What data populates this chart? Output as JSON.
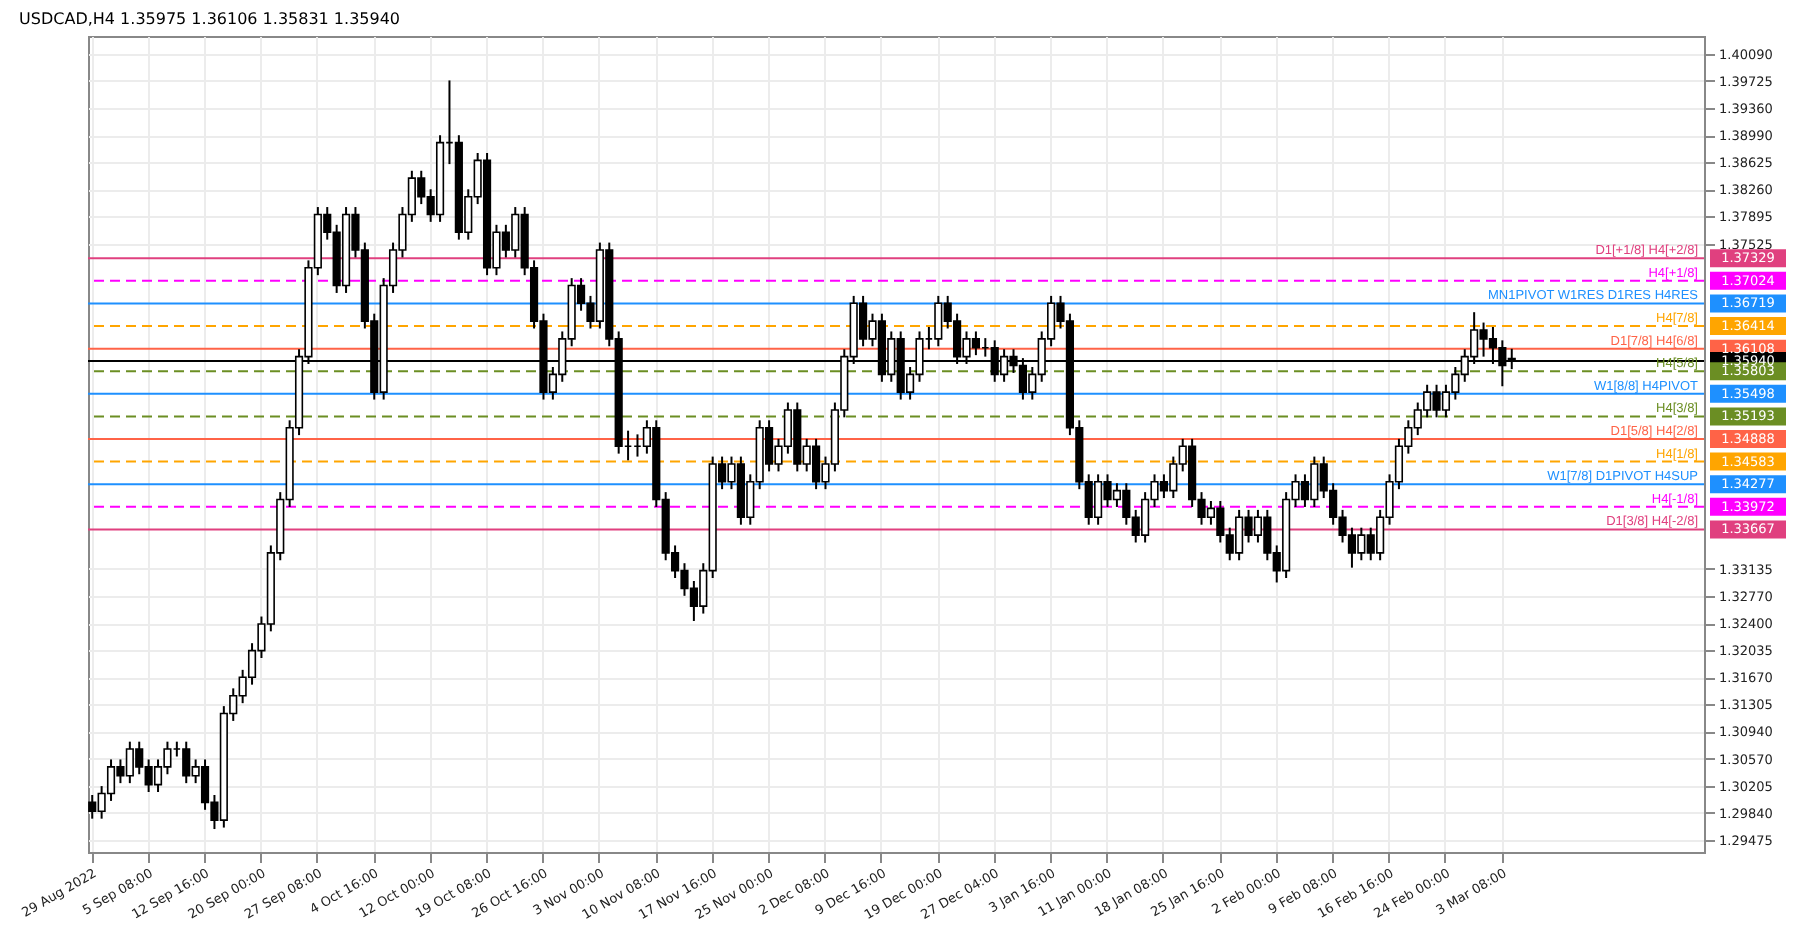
{
  "chart_data": {
    "type": "candlestick",
    "title": "USDCAD,H4 1.35975 1.36106 1.35831 1.35940",
    "categories": [
      "29 Aug 2022",
      null,
      null,
      null,
      null,
      null,
      "5 Sep 08:00",
      null,
      null,
      null,
      null,
      null,
      "12 Sep 16:00",
      null,
      null,
      null,
      null,
      null,
      "20 Sep 00:00",
      null,
      null,
      null,
      null,
      null,
      "27 Sep 08:00",
      null,
      null,
      null,
      null,
      null,
      "4 Oct 16:00",
      null,
      null,
      null,
      null,
      null,
      "12 Oct 00:00",
      null,
      null,
      null,
      null,
      null,
      "19 Oct 08:00",
      null,
      null,
      null,
      null,
      null,
      "26 Oct 16:00",
      null,
      null,
      null,
      null,
      null,
      "3 Nov 00:00",
      null,
      null,
      null,
      null,
      null,
      "10 Nov 08:00",
      null,
      null,
      null,
      null,
      null,
      "17 Nov 16:00",
      null,
      null,
      null,
      null,
      null,
      "25 Nov 00:00",
      null,
      null,
      null,
      null,
      null,
      "2 Dec 08:00",
      null,
      null,
      null,
      null,
      null,
      "9 Dec 16:00",
      null,
      null,
      null,
      null,
      null,
      "19 Dec 00:00",
      null,
      null,
      null,
      null,
      null,
      "27 Dec 04:00",
      null,
      null,
      null,
      null,
      null,
      "3 Jan 16:00",
      null,
      null,
      null,
      null,
      null,
      "11 Jan 00:00",
      null,
      null,
      null,
      null,
      null,
      "18 Jan 08:00",
      null,
      null,
      null,
      null,
      null,
      "25 Jan 16:00",
      null,
      null,
      null,
      null,
      null,
      "2 Feb 00:00",
      null,
      null,
      null,
      null,
      null,
      "9 Feb 08:00",
      null,
      null,
      null,
      null,
      null,
      "16 Feb 16:00",
      null,
      null,
      null,
      null,
      null,
      "24 Feb 00:00",
      null,
      null,
      null,
      null,
      null,
      "3 Mar 08:00",
      null,
      null,
      null,
      null,
      null,
      null,
      null,
      null,
      null,
      null,
      null,
      null,
      null,
      null,
      null,
      null,
      null,
      null,
      null,
      null,
      null
    ],
    "ohlc": [
      [
        1.2998,
        1.3008,
        1.2976,
        1.2986
      ],
      [
        1.2986,
        1.302,
        1.2976,
        1.301
      ],
      [
        1.301,
        1.3056,
        1.3,
        1.3046
      ],
      [
        1.3046,
        1.3056,
        1.3024,
        1.3034
      ],
      [
        1.3034,
        1.308,
        1.3024,
        1.307
      ],
      [
        1.307,
        1.308,
        1.3036,
        1.3046
      ],
      [
        1.3046,
        1.3056,
        1.3012,
        1.3022
      ],
      [
        1.3022,
        1.3056,
        1.3012,
        1.3046
      ],
      [
        1.3046,
        1.308,
        1.3036,
        1.307
      ],
      [
        1.307,
        1.308,
        1.306,
        1.307
      ],
      [
        1.307,
        1.308,
        1.3024,
        1.3034
      ],
      [
        1.3034,
        1.3056,
        1.3024,
        1.3046
      ],
      [
        1.3046,
        1.3056,
        1.2988,
        1.2998
      ],
      [
        1.2998,
        1.3008,
        1.2962,
        1.2974
      ],
      [
        1.2974,
        1.3128,
        1.2964,
        1.3118
      ],
      [
        1.3118,
        1.3152,
        1.3108,
        1.3142
      ],
      [
        1.3142,
        1.3177,
        1.3132,
        1.3167
      ],
      [
        1.3167,
        1.3213,
        1.3157,
        1.3203
      ],
      [
        1.3203,
        1.3249,
        1.3193,
        1.3239
      ],
      [
        1.3239,
        1.3345,
        1.3229,
        1.3335
      ],
      [
        1.3335,
        1.3417,
        1.3325,
        1.3407
      ],
      [
        1.3407,
        1.3514,
        1.3397,
        1.3504
      ],
      [
        1.3504,
        1.361,
        1.3494,
        1.36
      ],
      [
        1.36,
        1.373,
        1.359,
        1.372
      ],
      [
        1.372,
        1.3802,
        1.371,
        1.3792
      ],
      [
        1.3792,
        1.3802,
        1.3758,
        1.3768
      ],
      [
        1.3768,
        1.3778,
        1.3686,
        1.3696
      ],
      [
        1.3696,
        1.3802,
        1.3686,
        1.3792
      ],
      [
        1.3792,
        1.3802,
        1.3734,
        1.3744
      ],
      [
        1.3744,
        1.3754,
        1.3638,
        1.3648
      ],
      [
        1.3648,
        1.3658,
        1.3542,
        1.3552
      ],
      [
        1.3552,
        1.3706,
        1.3542,
        1.3696
      ],
      [
        1.3696,
        1.3754,
        1.3686,
        1.3744
      ],
      [
        1.3744,
        1.3802,
        1.3734,
        1.3792
      ],
      [
        1.3792,
        1.3851,
        1.3782,
        1.3841
      ],
      [
        1.3841,
        1.3851,
        1.3806,
        1.3816
      ],
      [
        1.3816,
        1.3826,
        1.3782,
        1.3792
      ],
      [
        1.3792,
        1.3899,
        1.3782,
        1.3889
      ],
      [
        1.3889,
        1.3973,
        1.386,
        1.3889
      ],
      [
        1.3889,
        1.3899,
        1.3758,
        1.3768
      ],
      [
        1.3768,
        1.3826,
        1.3758,
        1.3816
      ],
      [
        1.3816,
        1.3875,
        1.3806,
        1.3865
      ],
      [
        1.3865,
        1.3875,
        1.371,
        1.372
      ],
      [
        1.372,
        1.3778,
        1.371,
        1.3768
      ],
      [
        1.3768,
        1.3778,
        1.3734,
        1.3744
      ],
      [
        1.3744,
        1.3802,
        1.3734,
        1.3792
      ],
      [
        1.3792,
        1.3802,
        1.371,
        1.372
      ],
      [
        1.372,
        1.373,
        1.3638,
        1.3648
      ],
      [
        1.3648,
        1.3658,
        1.3542,
        1.3552
      ],
      [
        1.3552,
        1.3586,
        1.3542,
        1.3576
      ],
      [
        1.3576,
        1.3634,
        1.3566,
        1.3624
      ],
      [
        1.3624,
        1.3706,
        1.3614,
        1.3696
      ],
      [
        1.3696,
        1.3706,
        1.3662,
        1.3672
      ],
      [
        1.3672,
        1.3682,
        1.3638,
        1.3648
      ],
      [
        1.3648,
        1.3754,
        1.3638,
        1.3744
      ],
      [
        1.3744,
        1.3754,
        1.3614,
        1.3624
      ],
      [
        1.3624,
        1.3634,
        1.3469,
        1.3479
      ],
      [
        1.3479,
        1.35,
        1.346,
        1.3479
      ],
      [
        1.3479,
        1.3495,
        1.3465,
        1.3479
      ],
      [
        1.3479,
        1.3514,
        1.3469,
        1.3504
      ],
      [
        1.3504,
        1.3514,
        1.3397,
        1.3407
      ],
      [
        1.3407,
        1.3417,
        1.3325,
        1.3335
      ],
      [
        1.3335,
        1.3345,
        1.3301,
        1.3311
      ],
      [
        1.3311,
        1.3321,
        1.3277,
        1.3287
      ],
      [
        1.3287,
        1.3297,
        1.3243,
        1.3263
      ],
      [
        1.3263,
        1.3321,
        1.3253,
        1.3311
      ],
      [
        1.3311,
        1.3465,
        1.3301,
        1.3455
      ],
      [
        1.3455,
        1.3465,
        1.3421,
        1.3431
      ],
      [
        1.3431,
        1.3465,
        1.3421,
        1.3455
      ],
      [
        1.3455,
        1.3465,
        1.3373,
        1.3383
      ],
      [
        1.3383,
        1.3441,
        1.3373,
        1.3431
      ],
      [
        1.3431,
        1.3514,
        1.3421,
        1.3504
      ],
      [
        1.3504,
        1.3514,
        1.3445,
        1.3455
      ],
      [
        1.3455,
        1.3489,
        1.3445,
        1.3479
      ],
      [
        1.3479,
        1.3538,
        1.3469,
        1.3528
      ],
      [
        1.3528,
        1.3538,
        1.3445,
        1.3455
      ],
      [
        1.3455,
        1.3489,
        1.3445,
        1.3479
      ],
      [
        1.3479,
        1.3489,
        1.3421,
        1.3431
      ],
      [
        1.3431,
        1.3465,
        1.3421,
        1.3455
      ],
      [
        1.3455,
        1.3538,
        1.3445,
        1.3528
      ],
      [
        1.3528,
        1.361,
        1.3518,
        1.36
      ],
      [
        1.36,
        1.3682,
        1.359,
        1.3672
      ],
      [
        1.3672,
        1.3682,
        1.3614,
        1.3624
      ],
      [
        1.3624,
        1.3658,
        1.3614,
        1.3648
      ],
      [
        1.3648,
        1.3658,
        1.3566,
        1.3576
      ],
      [
        1.3576,
        1.3634,
        1.3566,
        1.3624
      ],
      [
        1.3624,
        1.3634,
        1.3542,
        1.3552
      ],
      [
        1.3552,
        1.3586,
        1.3542,
        1.3576
      ],
      [
        1.3576,
        1.3634,
        1.3566,
        1.3624
      ],
      [
        1.3624,
        1.364,
        1.361,
        1.3624
      ],
      [
        1.3624,
        1.3682,
        1.3614,
        1.3672
      ],
      [
        1.3672,
        1.3682,
        1.3638,
        1.3648
      ],
      [
        1.3648,
        1.3658,
        1.359,
        1.36
      ],
      [
        1.36,
        1.3634,
        1.359,
        1.3624
      ],
      [
        1.3624,
        1.3634,
        1.3602,
        1.3612
      ],
      [
        1.3612,
        1.3625,
        1.36,
        1.3612
      ],
      [
        1.3612,
        1.3622,
        1.3566,
        1.3576
      ],
      [
        1.3576,
        1.361,
        1.3566,
        1.36
      ],
      [
        1.36,
        1.361,
        1.3578,
        1.3588
      ],
      [
        1.3588,
        1.3598,
        1.3542,
        1.3552
      ],
      [
        1.3552,
        1.3586,
        1.3542,
        1.3576
      ],
      [
        1.3576,
        1.3634,
        1.3566,
        1.3624
      ],
      [
        1.3624,
        1.3682,
        1.3614,
        1.3672
      ],
      [
        1.3672,
        1.3682,
        1.3638,
        1.3648
      ],
      [
        1.3648,
        1.3658,
        1.3494,
        1.3504
      ],
      [
        1.3504,
        1.3514,
        1.3421,
        1.3431
      ],
      [
        1.3431,
        1.3441,
        1.3373,
        1.3383
      ],
      [
        1.3383,
        1.3441,
        1.3373,
        1.3431
      ],
      [
        1.3431,
        1.3441,
        1.3397,
        1.3407
      ],
      [
        1.3407,
        1.3429,
        1.3397,
        1.3419
      ],
      [
        1.3419,
        1.3429,
        1.3373,
        1.3383
      ],
      [
        1.3383,
        1.3393,
        1.3349,
        1.3359
      ],
      [
        1.3359,
        1.3417,
        1.3349,
        1.3407
      ],
      [
        1.3407,
        1.3441,
        1.3397,
        1.3431
      ],
      [
        1.3431,
        1.3441,
        1.3409,
        1.3419
      ],
      [
        1.3419,
        1.3465,
        1.3409,
        1.3455
      ],
      [
        1.3455,
        1.3489,
        1.3445,
        1.3479
      ],
      [
        1.3479,
        1.3489,
        1.3397,
        1.3407
      ],
      [
        1.3407,
        1.3417,
        1.3373,
        1.3383
      ],
      [
        1.3383,
        1.3405,
        1.3373,
        1.3395
      ],
      [
        1.3395,
        1.3405,
        1.3349,
        1.3359
      ],
      [
        1.3359,
        1.3369,
        1.3325,
        1.3335
      ],
      [
        1.3335,
        1.3393,
        1.3325,
        1.3383
      ],
      [
        1.3383,
        1.3393,
        1.3349,
        1.3359
      ],
      [
        1.3359,
        1.3393,
        1.3349,
        1.3383
      ],
      [
        1.3383,
        1.3393,
        1.3325,
        1.3335
      ],
      [
        1.3335,
        1.3345,
        1.3295,
        1.3311
      ],
      [
        1.3311,
        1.3417,
        1.3301,
        1.3407
      ],
      [
        1.3407,
        1.3441,
        1.3397,
        1.3431
      ],
      [
        1.3431,
        1.3441,
        1.3397,
        1.3407
      ],
      [
        1.3407,
        1.3465,
        1.3397,
        1.3455
      ],
      [
        1.3455,
        1.3465,
        1.3409,
        1.3419
      ],
      [
        1.3419,
        1.3429,
        1.3373,
        1.3383
      ],
      [
        1.3383,
        1.3393,
        1.3349,
        1.3359
      ],
      [
        1.3359,
        1.3369,
        1.3315,
        1.3335
      ],
      [
        1.3335,
        1.3369,
        1.3325,
        1.3359
      ],
      [
        1.3359,
        1.3369,
        1.3325,
        1.3335
      ],
      [
        1.3335,
        1.3393,
        1.3325,
        1.3383
      ],
      [
        1.3383,
        1.3441,
        1.3373,
        1.3431
      ],
      [
        1.3431,
        1.3489,
        1.3421,
        1.3479
      ],
      [
        1.3479,
        1.3514,
        1.3469,
        1.3504
      ],
      [
        1.3504,
        1.3538,
        1.3494,
        1.3528
      ],
      [
        1.3528,
        1.3562,
        1.3518,
        1.3552
      ],
      [
        1.3552,
        1.3562,
        1.3518,
        1.3528
      ],
      [
        1.3528,
        1.3562,
        1.3518,
        1.3552
      ],
      [
        1.3552,
        1.3586,
        1.3542,
        1.3576
      ],
      [
        1.3576,
        1.361,
        1.3566,
        1.36
      ],
      [
        1.36,
        1.366,
        1.359,
        1.3636
      ],
      [
        1.3636,
        1.3646,
        1.36,
        1.3624
      ],
      [
        1.3624,
        1.364,
        1.359,
        1.3612
      ],
      [
        1.3612,
        1.3622,
        1.356,
        1.3588
      ],
      [
        1.35975,
        1.36106,
        1.35831,
        1.3594
      ],
      null,
      null,
      null,
      null,
      null,
      null,
      null,
      null,
      null,
      null,
      null,
      null,
      null,
      null,
      null,
      null,
      null,
      null,
      null,
      null
    ],
    "ylim": [
      1.2931,
      1.4033
    ],
    "yticks": [
      {
        "value": 1.4009,
        "label": "1.40090"
      },
      1.39725,
      {
        "value": 1.3936,
        "label": "1.39360"
      },
      {
        "value": 1.3899,
        "label": "1.38990"
      },
      1.38625,
      {
        "value": 1.3826,
        "label": "1.38260"
      },
      1.37895,
      1.37525,
      1.33135,
      {
        "value": 1.3277,
        "label": "1.32770"
      },
      {
        "value": 1.324,
        "label": "1.32400"
      },
      1.32035,
      {
        "value": 1.3167,
        "label": "1.31670"
      },
      1.31305,
      {
        "value": 1.3094,
        "label": "1.30940"
      },
      {
        "value": 1.3057,
        "label": "1.30570"
      },
      1.30205,
      {
        "value": 1.2984,
        "label": "1.29840"
      },
      1.29475
    ],
    "annotations": [
      {
        "text": "D1[+1/8] H4[+2/8]",
        "y": 1.37329
      },
      {
        "text": "H4[+1/8]",
        "y": 1.37024
      },
      {
        "text": "MN1PIVOT W1RES D1RES H4RES",
        "y": 1.36719
      },
      {
        "text": "H4[7/8]",
        "y": 1.36414
      },
      {
        "text": "D1[7/8] H4[6/8]",
        "y": 1.36108
      },
      {
        "text": "H4[5/8]",
        "y": 1.35803
      },
      {
        "text": "W1[8/8] H4PIVOT",
        "y": 1.35498
      },
      {
        "text": "H4[3/8]",
        "y": 1.35193
      },
      {
        "text": "D1[5/8] H4[2/8]",
        "y": 1.34888
      },
      {
        "text": "H4[1/8]",
        "y": 1.34583
      },
      {
        "text": "W1[7/8] D1PIVOT H4SUP",
        "y": 1.34277
      },
      {
        "text": "H4[-1/8]",
        "y": 1.33972
      },
      {
        "text": "D1[3/8] H4[-2/8]",
        "y": 1.33667
      }
    ],
    "grid": true,
    "ref_lines": [
      {
        "axis": "y",
        "value": 1.37329,
        "label": "1.37329",
        "color": "#e0407f",
        "line_style": "solid"
      },
      {
        "axis": "y",
        "value": 1.37024,
        "label": "1.37024",
        "color": "#ff00ff",
        "line_style": "dashed"
      },
      {
        "axis": "y",
        "value": 1.36719,
        "label": "1.36719",
        "color": "#1e90ff",
        "line_style": "solid"
      },
      {
        "axis": "y",
        "value": 1.36414,
        "label": "1.36414",
        "color": "#ffa500",
        "line_style": "dashed"
      },
      {
        "axis": "y",
        "value": 1.36108,
        "label": "1.36108",
        "color": "#ff6347",
        "line_style": "solid"
      },
      {
        "axis": "y",
        "value": 1.3594,
        "label": "1.35940",
        "color": "#000000",
        "line_style": "solid"
      },
      {
        "axis": "y",
        "value": 1.35803,
        "label": "1.35803",
        "color": "#6b8e23",
        "line_style": "dashed"
      },
      {
        "axis": "y",
        "value": 1.35498,
        "label": "1.35498",
        "color": "#1e90ff",
        "line_style": "solid"
      },
      {
        "axis": "y",
        "value": 1.35193,
        "label": "1.35193",
        "color": "#6b8e23",
        "line_style": "dashed"
      },
      {
        "axis": "y",
        "value": 1.34888,
        "label": "1.34888",
        "color": "#ff6347",
        "line_style": "solid"
      },
      {
        "axis": "y",
        "value": 1.34583,
        "label": "1.34583",
        "color": "#ffa500",
        "line_style": "dashed"
      },
      {
        "axis": "y",
        "value": 1.34277,
        "label": "1.34277",
        "color": "#1e90ff",
        "line_style": "solid"
      },
      {
        "axis": "y",
        "value": 1.33972,
        "label": "1.33972",
        "color": "#ff00ff",
        "line_style": "dashed"
      },
      {
        "axis": "y",
        "value": 1.33667,
        "label": "1.33667",
        "color": "#e0407f",
        "line_style": "solid"
      }
    ]
  }
}
